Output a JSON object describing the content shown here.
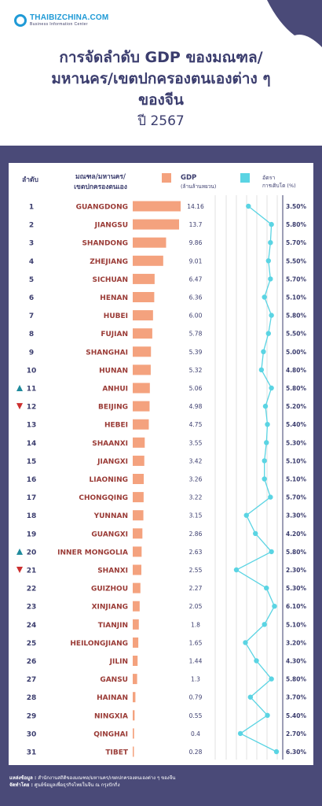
{
  "header": {
    "logo_name": "THAIBIZCHINA.COM",
    "logo_sub": "Business Information Center",
    "title_line1": "การจัดลำดับ GDP ของมณฑล/",
    "title_line2": "มหานคร/เขตปกครองตนเองต่าง ๆ",
    "title_line3": "ของจีน",
    "year": "ปี 2567"
  },
  "columns": {
    "rank": "ลำดับ",
    "province_line1": "มณฑล/มหานคร/",
    "province_line2": "เขตปกครองตนเอง",
    "gdp_line1": "GDP",
    "gdp_line2": "(ล้านล้านหยวน)",
    "growth_line1": "อัตรา",
    "growth_line2": "การเติบโต (%)"
  },
  "colors": {
    "bar": "#f4a27e",
    "line": "#5ad4e3",
    "province_text": "#9a3b36",
    "up": "#1e8a9c",
    "down": "#cc2f2f",
    "frame": "#4a4a78",
    "title": "#3b3d6e"
  },
  "chart_data": {
    "type": "bar",
    "title": "การจัดลำดับ GDP ของมณฑล/มหานคร/เขตปกครองตนเองต่าง ๆ ของจีน",
    "subtitle": "ปี 2567",
    "categories": [
      "GUANGDONG",
      "JIANGSU",
      "SHANDONG",
      "ZHEJIANG",
      "SICHUAN",
      "HENAN",
      "HUBEI",
      "FUJIAN",
      "SHANGHAI",
      "HUNAN",
      "ANHUI",
      "BEIJING",
      "HEBEI",
      "SHAANXI",
      "JIANGXI",
      "LIAONING",
      "CHONGQING",
      "YUNNAN",
      "GUANGXI",
      "INNER MONGOLIA",
      "SHANXI",
      "GUIZHOU",
      "XINJIANG",
      "TIANJIN",
      "HEILONGJIANG",
      "JILIN",
      "GANSU",
      "HAINAN",
      "NINGXIA",
      "QINGHAI",
      "TIBET"
    ],
    "ranks": [
      "1",
      "2",
      "3",
      "4",
      "5",
      "6",
      "7",
      "8",
      "9",
      "10",
      "11",
      "12",
      "13",
      "14",
      "15",
      "16",
      "17",
      "18",
      "19",
      "20",
      "21",
      "22",
      "23",
      "24",
      "25",
      "26",
      "27",
      "28",
      "29",
      "30",
      "31"
    ],
    "rank_change": [
      "",
      "",
      "",
      "",
      "",
      "",
      "",
      "",
      "",
      "",
      "up",
      "down",
      "",
      "",
      "",
      "",
      "",
      "",
      "",
      "up",
      "down",
      "",
      "",
      "",
      "",
      "",
      "",
      "",
      "",
      "",
      ""
    ],
    "series": [
      {
        "name": "GDP",
        "values": [
          14.16,
          13.7,
          9.86,
          9.01,
          6.47,
          6.36,
          6.0,
          5.78,
          5.39,
          5.32,
          5.06,
          4.98,
          4.75,
          3.55,
          3.42,
          3.26,
          3.22,
          3.15,
          2.86,
          2.63,
          2.55,
          2.27,
          2.05,
          1.8,
          1.65,
          1.44,
          1.3,
          0.79,
          0.55,
          0.4,
          0.28
        ],
        "labels": [
          "14.16",
          "13.7",
          "9.86",
          "9.01",
          "6.47",
          "6.36",
          "6.00",
          "5.78",
          "5.39",
          "5.32",
          "5.06",
          "4.98",
          "4.75",
          "3.55",
          "3.42",
          "3.26",
          "3.22",
          "3.15",
          "2.86",
          "2.63",
          "2.55",
          "2.27",
          "2.05",
          "1.8",
          "1.65",
          "1.44",
          "1.3",
          "0.79",
          "0.55",
          "0.4",
          "0.28"
        ]
      },
      {
        "name": "อัตราการเติบโต (%)",
        "values": [
          3.5,
          5.8,
          5.7,
          5.5,
          5.7,
          5.1,
          5.8,
          5.5,
          5.0,
          4.8,
          5.8,
          5.2,
          5.4,
          5.3,
          5.1,
          5.1,
          5.7,
          3.3,
          4.2,
          5.8,
          2.3,
          5.3,
          6.1,
          5.1,
          3.2,
          4.3,
          5.8,
          3.7,
          5.4,
          2.7,
          6.3
        ],
        "labels": [
          "3.50%",
          "5.80%",
          "5.70%",
          "5.50%",
          "5.70%",
          "5.10%",
          "5.80%",
          "5.50%",
          "5.00%",
          "4.80%",
          "5.80%",
          "5.20%",
          "5.40%",
          "5.30%",
          "5.10%",
          "5.10%",
          "5.70%",
          "3.30%",
          "4.20%",
          "5.80%",
          "2.30%",
          "5.30%",
          "6.10%",
          "5.10%",
          "3.20%",
          "4.30%",
          "5.80%",
          "3.70%",
          "5.40%",
          "2.70%",
          "6.30%"
        ]
      }
    ],
    "growth_range": [
      2.3,
      6.3
    ]
  },
  "footer": {
    "source_label": "แหล่งข้อมูล :",
    "source_text": "สำนักงานสถิติของมณฑล/มหานคร/เขตปกครองตนเองต่าง ๆ ของจีน",
    "compiled_label": "จัดทำโดย :",
    "compiled_text": "ศูนย์ข้อมูลเพื่อธุรกิจไทยในจีน ณ กรุงปักกิ่ง"
  }
}
